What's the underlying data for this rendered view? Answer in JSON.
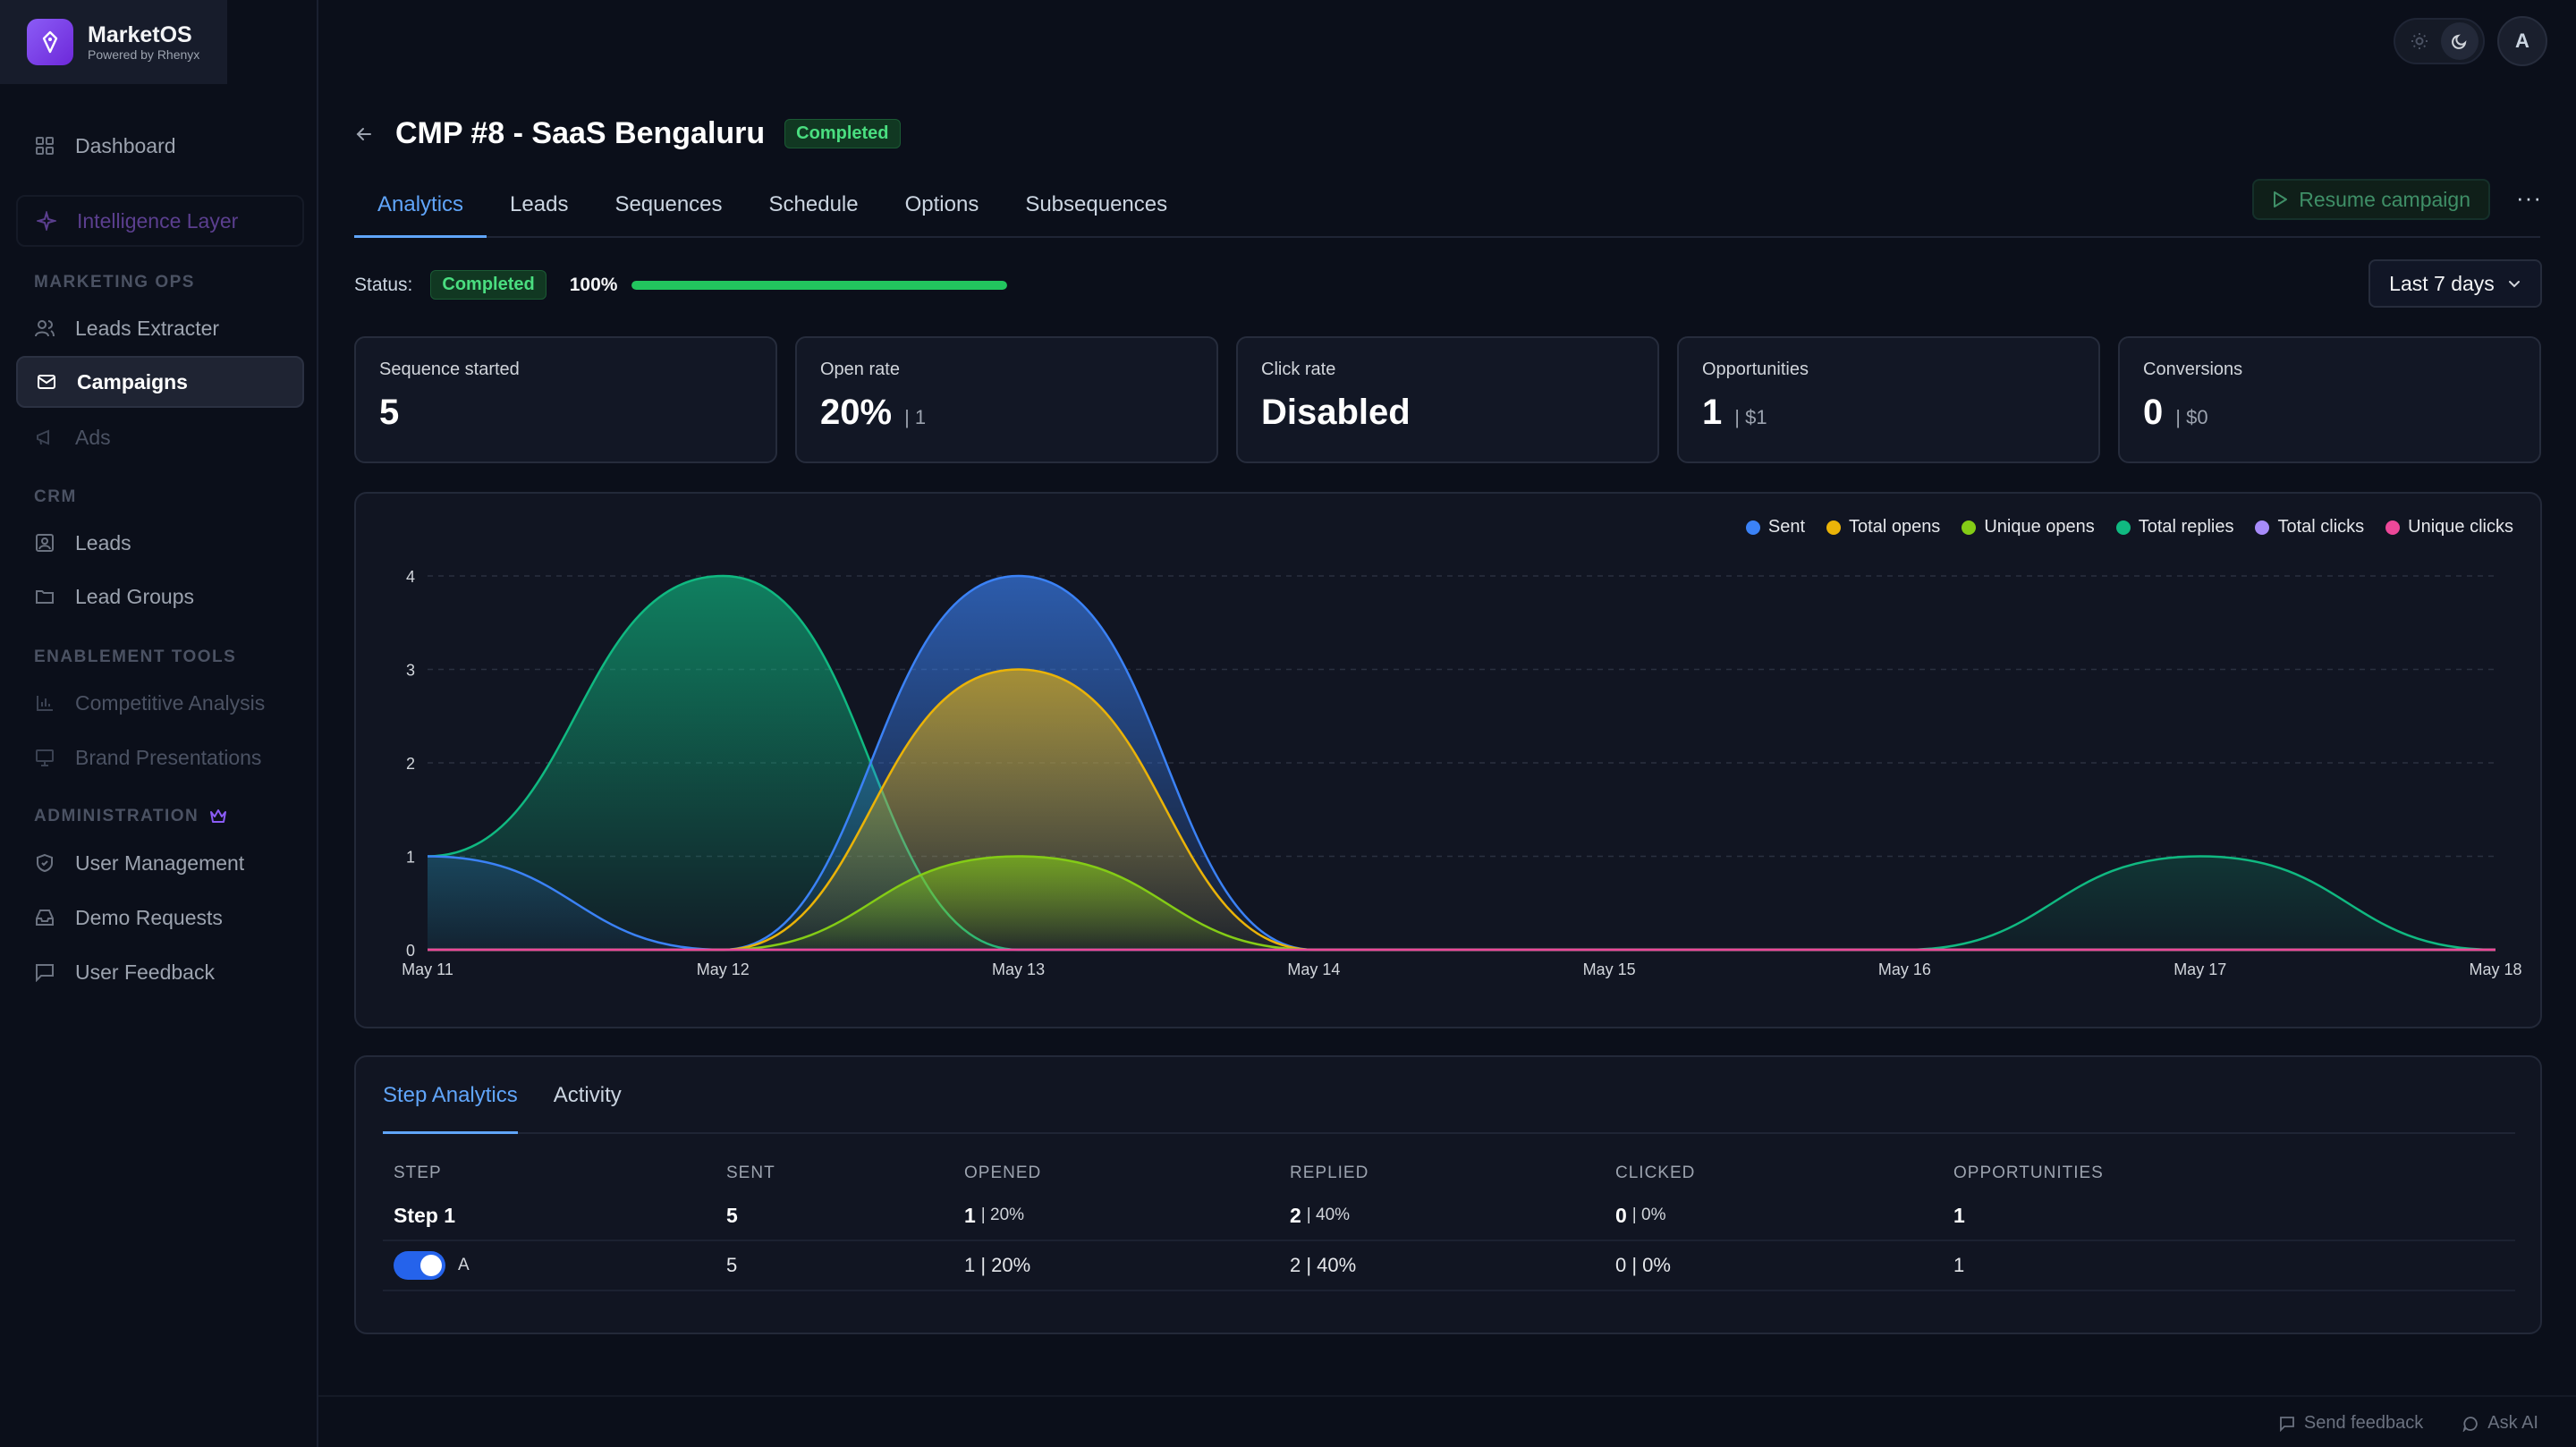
{
  "brand": {
    "name": "MarketOS",
    "sub": "Powered by Rhenyx"
  },
  "sidebar": {
    "dashboard": "Dashboard",
    "intelligence": "Intelligence Layer",
    "sections": {
      "marketing": "MARKETING OPS",
      "crm": "CRM",
      "enablement": "ENABLEMENT TOOLS",
      "administration": "ADMINISTRATION"
    },
    "leads_extracter": "Leads Extracter",
    "campaigns": "Campaigns",
    "ads": "Ads",
    "leads": "Leads",
    "lead_groups": "Lead Groups",
    "competitive_analysis": "Competitive Analysis",
    "brand_presentations": "Brand Presentations",
    "user_management": "User Management",
    "demo_requests": "Demo Requests",
    "user_feedback": "User Feedback"
  },
  "topbar": {
    "avatar": "A"
  },
  "campaign": {
    "title": "CMP #8 - SaaS Bengaluru",
    "badge": "Completed"
  },
  "tabs": [
    "Analytics",
    "Leads",
    "Sequences",
    "Schedule",
    "Options",
    "Subsequences"
  ],
  "actions": {
    "resume": "Resume campaign",
    "more": "···"
  },
  "status": {
    "label": "Status:",
    "badge": "Completed",
    "percent": "100%",
    "progress": 1.0
  },
  "date_range": "Last 7 days",
  "stats": [
    {
      "label": "Sequence started",
      "value": "5",
      "sub": ""
    },
    {
      "label": "Open rate",
      "value": "20%",
      "sub": "| 1"
    },
    {
      "label": "Click rate",
      "value": "Disabled",
      "sub": ""
    },
    {
      "label": "Opportunities",
      "value": "1",
      "sub": "| $1"
    },
    {
      "label": "Conversions",
      "value": "0",
      "sub": "| $0"
    }
  ],
  "chart_data": {
    "type": "area",
    "x": [
      "May 11",
      "May 12",
      "May 13",
      "May 14",
      "May 15",
      "May 16",
      "May 17",
      "May 18"
    ],
    "ylim": [
      0,
      4
    ],
    "yticks": [
      0,
      1,
      2,
      3,
      4
    ],
    "grid": true,
    "legend_position": "top-right",
    "series": [
      {
        "name": "Sent",
        "color": "#3b82f6",
        "values": [
          1,
          0,
          4,
          0,
          0,
          0,
          0,
          0
        ]
      },
      {
        "name": "Total opens",
        "color": "#eab308",
        "values": [
          0,
          0,
          3,
          0,
          0,
          0,
          0,
          0
        ]
      },
      {
        "name": "Unique opens",
        "color": "#84cc16",
        "values": [
          0,
          0,
          1,
          0,
          0,
          0,
          0,
          0
        ]
      },
      {
        "name": "Total replies",
        "color": "#10b981",
        "values": [
          1,
          4,
          0,
          0,
          0,
          0,
          1,
          0
        ]
      },
      {
        "name": "Total clicks",
        "color": "#a78bfa",
        "values": [
          0,
          0,
          0,
          0,
          0,
          0,
          0,
          0
        ]
      },
      {
        "name": "Unique clicks",
        "color": "#ec4899",
        "values": [
          0,
          0,
          0,
          0,
          0,
          0,
          0,
          0
        ]
      }
    ]
  },
  "step_tabs": [
    "Step Analytics",
    "Activity"
  ],
  "table": {
    "headers": [
      "STEP",
      "SENT",
      "OPENED",
      "REPLIED",
      "CLICKED",
      "OPPORTUNITIES"
    ],
    "step_row": {
      "step": "Step 1",
      "sent": "5",
      "opened": "1",
      "opened_pct": "| 20%",
      "replied": "2",
      "replied_pct": "| 40%",
      "clicked": "0",
      "clicked_pct": "| 0%",
      "opportunities": "1"
    },
    "variant_row": {
      "variant": "A",
      "sent": "5",
      "opened": "1 | 20%",
      "replied": "2 | 40%",
      "clicked": "0 | 0%",
      "opportunities": "1"
    }
  },
  "footer": {
    "feedback": "Send feedback",
    "ask_ai": "Ask AI"
  }
}
